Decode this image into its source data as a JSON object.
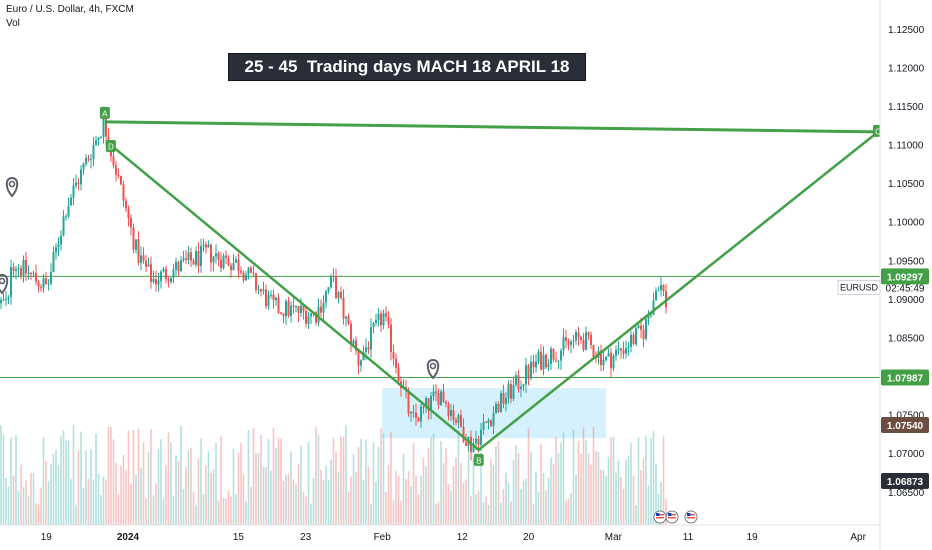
{
  "header": {
    "title": "Euro / U.S. Dollar, 4h, FXCM",
    "volume_label": "Vol"
  },
  "annotation": "25 - 45  Trading days MACH 18 APRIL 18",
  "symbol_label": "EURUSD",
  "countdown": "02:45:49",
  "colors": {
    "up": "#26a69a",
    "down": "#ef5350",
    "pattern": "#43a047",
    "level": "#43a047",
    "zone": "#b3e5fc"
  },
  "chart_data": {
    "type": "candlestick",
    "instrument": "EURUSD",
    "timeframe": "4h",
    "ylim": [
      1.0627,
      1.1275
    ],
    "y_ticks": [
      "1.12500",
      "1.12000",
      "1.11500",
      "1.11000",
      "1.10500",
      "1.10000",
      "1.09500",
      "1.09000",
      "1.08500",
      "1.08000",
      "1.07500",
      "1.07000",
      "1.06500"
    ],
    "x_ticks": [
      "19",
      "2024",
      "15",
      "23",
      "Feb",
      "12",
      "20",
      "Mar",
      "11",
      "19",
      "Apr"
    ],
    "price_path": [
      {
        "x": "Dec 15",
        "y": 1.08
      },
      {
        "x": "Dec 15",
        "y": 1.095
      },
      {
        "x": "Dec 19",
        "y": 1.0915
      },
      {
        "x": "Dec 22",
        "y": 1.102
      },
      {
        "x": "Dec 28",
        "y": 1.113
      },
      {
        "x": "Jan 2",
        "y": 1.096
      },
      {
        "x": "Jan 4",
        "y": 1.0925
      },
      {
        "x": "Jan 11",
        "y": 1.096
      },
      {
        "x": "Jan 15",
        "y": 1.0945
      },
      {
        "x": "Jan 19",
        "y": 1.089
      },
      {
        "x": "Jan 24",
        "y": 1.088
      },
      {
        "x": "Jan 26",
        "y": 1.0925
      },
      {
        "x": "Jan 29",
        "y": 1.082
      },
      {
        "x": "Feb 1",
        "y": 1.088
      },
      {
        "x": "Feb 5",
        "y": 1.074
      },
      {
        "x": "Feb 9",
        "y": 1.078
      },
      {
        "x": "Feb 13",
        "y": 1.071
      },
      {
        "x": "Feb 16",
        "y": 1.076
      },
      {
        "x": "Feb 21",
        "y": 1.082
      },
      {
        "x": "Feb 26",
        "y": 1.085
      },
      {
        "x": "Feb 29",
        "y": 1.082
      },
      {
        "x": "Mar 5",
        "y": 1.086
      },
      {
        "x": "Mar 7",
        "y": 1.0925
      },
      {
        "x": "Mar 8",
        "y": 1.0895
      }
    ],
    "pattern_points": [
      {
        "label": "A",
        "x": "Dec 28",
        "y": 1.113
      },
      {
        "label": "D",
        "x": "Dec 28",
        "y": 1.11
      },
      {
        "label": "B",
        "x": "Feb 14",
        "y": 1.0705
      },
      {
        "label": "C",
        "x": "Apr 18",
        "y": 1.1117
      }
    ],
    "horizontal_levels": [
      "1.09297",
      "1.07987"
    ],
    "price_labels": [
      {
        "text": "1.09297",
        "color": "#43a047"
      },
      {
        "text": "1.07987",
        "color": "#43a047"
      },
      {
        "text": "1.07540",
        "color": "#6d4c41"
      },
      {
        "text": "1.06873",
        "color": "#2a2e39"
      }
    ],
    "zone": {
      "x_start": "Feb 1",
      "x_end": "Feb 29",
      "y_low": 1.072,
      "y_high": 1.0785
    },
    "last_price": 1.0905
  }
}
